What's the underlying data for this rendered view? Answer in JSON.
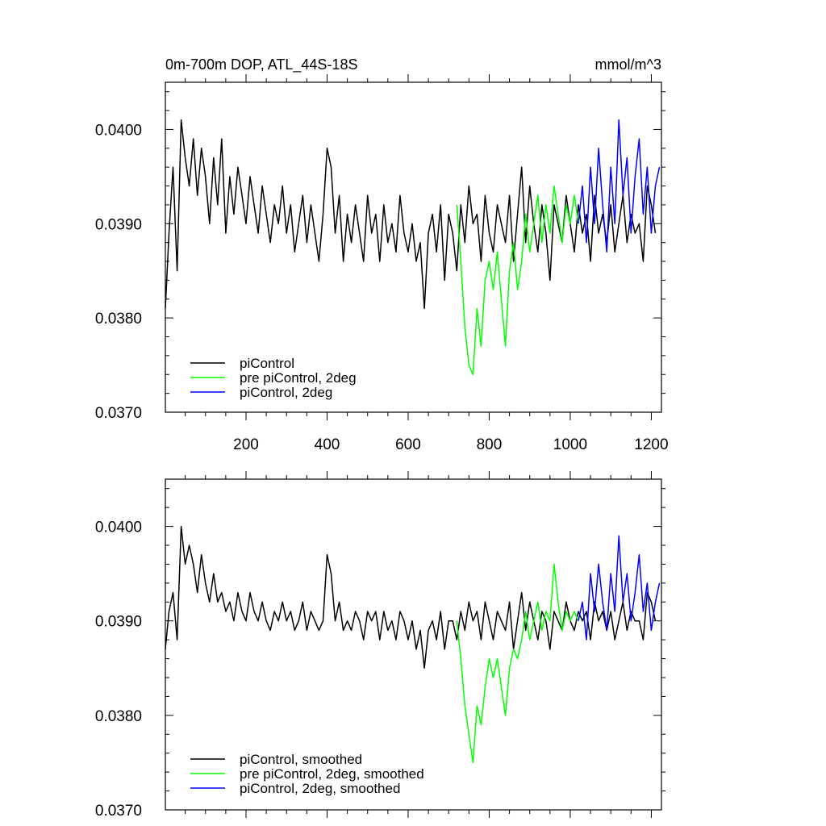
{
  "chart_data": [
    {
      "type": "line",
      "title": "0m-700m DOP, ATL_44S-18S",
      "units": "mmol/m^3",
      "xlim": [
        1,
        1225
      ],
      "ylim": [
        0.037,
        0.0405
      ],
      "xticks": [
        200,
        400,
        600,
        800,
        1000,
        1200
      ],
      "yticks": [
        0.037,
        0.038,
        0.039,
        0.04
      ],
      "ytick_labels": [
        "0.0370",
        "0.0380",
        "0.0390",
        "0.0400"
      ],
      "legend_placement": "bottom-left",
      "series": [
        {
          "name": "piControl",
          "color": "#000000",
          "x": [
            1,
            10,
            20,
            30,
            40,
            50,
            60,
            70,
            80,
            90,
            100,
            110,
            120,
            130,
            140,
            150,
            160,
            170,
            180,
            190,
            200,
            210,
            220,
            230,
            240,
            250,
            260,
            270,
            280,
            290,
            300,
            310,
            320,
            330,
            340,
            350,
            360,
            370,
            380,
            390,
            400,
            410,
            420,
            430,
            440,
            450,
            460,
            470,
            480,
            490,
            500,
            510,
            520,
            530,
            540,
            550,
            560,
            570,
            580,
            590,
            600,
            610,
            620,
            630,
            640,
            650,
            660,
            670,
            680,
            690,
            700,
            710,
            720,
            730,
            740,
            750,
            760,
            770,
            780,
            790,
            800,
            810,
            820,
            830,
            840,
            850,
            860,
            870,
            880,
            890,
            900,
            910,
            920,
            930,
            940,
            950,
            960,
            970,
            980,
            990,
            1000,
            1010,
            1020,
            1030,
            1040,
            1050,
            1060,
            1070,
            1080,
            1090,
            1100,
            1110,
            1120,
            1130,
            1140,
            1150,
            1160,
            1170,
            1180,
            1190,
            1200,
            1210
          ],
          "values": [
            0.0381,
            0.0389,
            0.0396,
            0.0385,
            0.0401,
            0.0397,
            0.0394,
            0.0399,
            0.0393,
            0.0398,
            0.0395,
            0.039,
            0.0397,
            0.0392,
            0.0399,
            0.0389,
            0.0395,
            0.0391,
            0.0396,
            0.0393,
            0.039,
            0.0395,
            0.0392,
            0.0389,
            0.0394,
            0.0391,
            0.0388,
            0.0392,
            0.039,
            0.0394,
            0.0389,
            0.0392,
            0.0387,
            0.039,
            0.0393,
            0.0388,
            0.0392,
            0.0389,
            0.0386,
            0.0391,
            0.0398,
            0.0396,
            0.0389,
            0.0393,
            0.0386,
            0.0391,
            0.0388,
            0.0392,
            0.0389,
            0.0386,
            0.0393,
            0.0389,
            0.0391,
            0.0386,
            0.0392,
            0.0388,
            0.039,
            0.0387,
            0.0393,
            0.0389,
            0.0387,
            0.039,
            0.0386,
            0.0388,
            0.0381,
            0.0389,
            0.0391,
            0.0387,
            0.0392,
            0.0384,
            0.0391,
            0.0389,
            0.0385,
            0.0392,
            0.0388,
            0.0394,
            0.039,
            0.0391,
            0.0386,
            0.0393,
            0.0389,
            0.0387,
            0.0392,
            0.039,
            0.0388,
            0.0393,
            0.0386,
            0.0391,
            0.0396,
            0.0388,
            0.0394,
            0.039,
            0.0387,
            0.0392,
            0.0389,
            0.0384,
            0.0392,
            0.039,
            0.0388,
            0.0393,
            0.039,
            0.0387,
            0.0392,
            0.0389,
            0.0391,
            0.0386,
            0.0393,
            0.0389,
            0.0391,
            0.0388,
            0.0392,
            0.0387,
            0.039,
            0.0393,
            0.0388,
            0.0391,
            0.0389,
            0.039,
            0.0386,
            0.0394,
            0.0392,
            0.0389
          ]
        },
        {
          "name": "pre piControl, 2deg",
          "color": "#00ff00",
          "x": [
            720,
            730,
            740,
            750,
            760,
            770,
            780,
            790,
            800,
            810,
            820,
            830,
            840,
            850,
            860,
            870,
            880,
            890,
            900,
            910,
            920,
            930,
            940,
            950,
            960,
            970,
            980,
            990,
            1000,
            1010,
            1020
          ],
          "values": [
            0.0392,
            0.0386,
            0.0379,
            0.0375,
            0.0374,
            0.0381,
            0.0377,
            0.0384,
            0.0386,
            0.0383,
            0.0387,
            0.0382,
            0.0377,
            0.0385,
            0.0388,
            0.0383,
            0.0386,
            0.0391,
            0.0387,
            0.039,
            0.0393,
            0.0388,
            0.0392,
            0.0389,
            0.0394,
            0.0391,
            0.0388,
            0.0392,
            0.039,
            0.0393,
            0.039
          ]
        },
        {
          "name": "piControl, 2deg",
          "color": "#0000ff",
          "x": [
            1020,
            1030,
            1040,
            1050,
            1060,
            1070,
            1080,
            1090,
            1100,
            1110,
            1120,
            1130,
            1140,
            1150,
            1160,
            1170,
            1180,
            1190,
            1200,
            1210,
            1220
          ],
          "values": [
            0.039,
            0.0394,
            0.0388,
            0.0396,
            0.039,
            0.0398,
            0.0392,
            0.0387,
            0.0396,
            0.039,
            0.0401,
            0.0393,
            0.0397,
            0.0389,
            0.0395,
            0.0399,
            0.0391,
            0.0396,
            0.0389,
            0.0394,
            0.0396
          ]
        }
      ]
    },
    {
      "type": "line",
      "title": "",
      "xlim": [
        1,
        1225
      ],
      "ylim": [
        0.037,
        0.0405
      ],
      "xticks": [
        200,
        400,
        600,
        800,
        1000,
        1200
      ],
      "yticks": [
        0.037,
        0.038,
        0.039,
        0.04
      ],
      "ytick_labels": [
        "0.0370",
        "0.0380",
        "0.0390",
        "0.0400"
      ],
      "legend_placement": "bottom-left",
      "series": [
        {
          "name": "piControl, smoothed",
          "color": "#000000",
          "x": [
            1,
            10,
            20,
            30,
            40,
            50,
            60,
            70,
            80,
            90,
            100,
            110,
            120,
            130,
            140,
            150,
            160,
            170,
            180,
            190,
            200,
            210,
            220,
            230,
            240,
            250,
            260,
            270,
            280,
            290,
            300,
            310,
            320,
            330,
            340,
            350,
            360,
            370,
            380,
            390,
            400,
            410,
            420,
            430,
            440,
            450,
            460,
            470,
            480,
            490,
            500,
            510,
            520,
            530,
            540,
            550,
            560,
            570,
            580,
            590,
            600,
            610,
            620,
            630,
            640,
            650,
            660,
            670,
            680,
            690,
            700,
            710,
            720,
            730,
            740,
            750,
            760,
            770,
            780,
            790,
            800,
            810,
            820,
            830,
            840,
            850,
            860,
            870,
            880,
            890,
            900,
            910,
            920,
            930,
            940,
            950,
            960,
            970,
            980,
            990,
            1000,
            1010,
            1020,
            1030,
            1040,
            1050,
            1060,
            1070,
            1080,
            1090,
            1100,
            1110,
            1120,
            1130,
            1140,
            1150,
            1160,
            1170,
            1180,
            1190,
            1200,
            1210
          ],
          "values": [
            0.0387,
            0.0391,
            0.0393,
            0.0388,
            0.04,
            0.0396,
            0.0398,
            0.0396,
            0.0393,
            0.0397,
            0.0394,
            0.0392,
            0.0395,
            0.0392,
            0.0393,
            0.0391,
            0.0392,
            0.039,
            0.0393,
            0.0391,
            0.039,
            0.0393,
            0.0391,
            0.039,
            0.0392,
            0.039,
            0.0389,
            0.0391,
            0.039,
            0.0392,
            0.039,
            0.0391,
            0.0389,
            0.039,
            0.0392,
            0.0389,
            0.0391,
            0.039,
            0.0389,
            0.039,
            0.0397,
            0.0395,
            0.039,
            0.0392,
            0.0389,
            0.039,
            0.0389,
            0.0391,
            0.039,
            0.0388,
            0.0391,
            0.039,
            0.0391,
            0.0388,
            0.0391,
            0.0389,
            0.039,
            0.0388,
            0.0391,
            0.039,
            0.0388,
            0.039,
            0.0387,
            0.0389,
            0.0385,
            0.0389,
            0.039,
            0.0388,
            0.0391,
            0.0387,
            0.039,
            0.039,
            0.0388,
            0.0391,
            0.0389,
            0.0392,
            0.039,
            0.0391,
            0.0388,
            0.0392,
            0.039,
            0.0388,
            0.0391,
            0.039,
            0.0389,
            0.0392,
            0.0387,
            0.039,
            0.0393,
            0.0389,
            0.0392,
            0.039,
            0.0388,
            0.0391,
            0.039,
            0.0387,
            0.0391,
            0.039,
            0.0389,
            0.0392,
            0.039,
            0.0389,
            0.0391,
            0.039,
            0.0391,
            0.0388,
            0.0392,
            0.039,
            0.0391,
            0.0389,
            0.0391,
            0.0388,
            0.039,
            0.0392,
            0.0389,
            0.0391,
            0.039,
            0.039,
            0.0388,
            0.0393,
            0.0392,
            0.039
          ]
        },
        {
          "name": "pre piControl, 2deg, smoothed",
          "color": "#00ff00",
          "x": [
            720,
            730,
            740,
            750,
            760,
            770,
            780,
            790,
            800,
            810,
            820,
            830,
            840,
            850,
            860,
            870,
            880,
            890,
            900,
            910,
            920,
            930,
            940,
            950,
            960,
            970,
            980,
            990,
            1000,
            1010,
            1020
          ],
          "values": [
            0.039,
            0.0386,
            0.0381,
            0.0378,
            0.0375,
            0.0381,
            0.0379,
            0.0383,
            0.0386,
            0.0384,
            0.0386,
            0.0383,
            0.038,
            0.0385,
            0.0387,
            0.0386,
            0.0388,
            0.0391,
            0.0388,
            0.039,
            0.0392,
            0.0389,
            0.0391,
            0.039,
            0.0396,
            0.0392,
            0.0389,
            0.0391,
            0.039,
            0.0391,
            0.039
          ]
        },
        {
          "name": "piControl, 2deg, smoothed",
          "color": "#0000ff",
          "x": [
            1020,
            1030,
            1040,
            1050,
            1060,
            1070,
            1080,
            1090,
            1100,
            1110,
            1120,
            1130,
            1140,
            1150,
            1160,
            1170,
            1180,
            1190,
            1200,
            1210,
            1220
          ],
          "values": [
            0.039,
            0.0392,
            0.0388,
            0.0395,
            0.0391,
            0.0396,
            0.0392,
            0.0389,
            0.0395,
            0.0391,
            0.0399,
            0.0392,
            0.0395,
            0.039,
            0.0393,
            0.0397,
            0.0391,
            0.0394,
            0.0389,
            0.0392,
            0.0394
          ]
        }
      ]
    }
  ]
}
